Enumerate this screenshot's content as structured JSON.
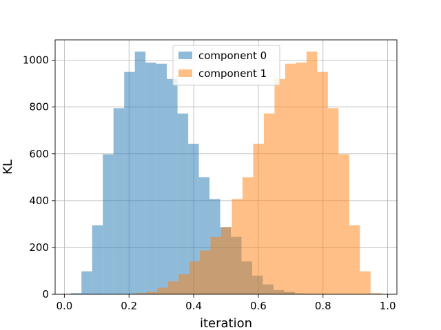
{
  "chart_data": {
    "type": "histogram",
    "xlabel": "iteration",
    "ylabel": "KL",
    "xlim": [
      -0.0285,
      1.0285
    ],
    "ylim": [
      0,
      1087
    ],
    "grid": true,
    "legend_placement": "top-center",
    "xticks": [
      0.0,
      0.2,
      0.4,
      0.6,
      0.8,
      1.0
    ],
    "xtick_labels": [
      "0.0",
      "0.2",
      "0.4",
      "0.6",
      "0.8",
      "1.0"
    ],
    "yticks": [
      0,
      200,
      400,
      600,
      800,
      1000
    ],
    "ytick_labels": [
      "0",
      "200",
      "400",
      "600",
      "800",
      "1000"
    ],
    "series": [
      {
        "name": "component 0",
        "color": "#1f77b4",
        "alpha": 0.5,
        "bin_edges": [
          0.02,
          0.053,
          0.086,
          0.119,
          0.152,
          0.185,
          0.218,
          0.251,
          0.284,
          0.317,
          0.35,
          0.383,
          0.416,
          0.449,
          0.482,
          0.515,
          0.548,
          0.581,
          0.614,
          0.647,
          0.68,
          0.713,
          0.746,
          0.779,
          0.812
        ],
        "counts": [
          5,
          98,
          295,
          598,
          795,
          950,
          1037,
          990,
          985,
          920,
          772,
          643,
          500,
          407,
          287,
          245,
          140,
          80,
          42,
          18,
          10,
          3,
          2,
          1
        ]
      },
      {
        "name": "component 1",
        "color": "#ff7f0e",
        "alpha": 0.5,
        "bin_edges": [
          0.188,
          0.221,
          0.254,
          0.287,
          0.32,
          0.353,
          0.386,
          0.419,
          0.452,
          0.485,
          0.518,
          0.551,
          0.584,
          0.617,
          0.65,
          0.683,
          0.716,
          0.749,
          0.782,
          0.815,
          0.848,
          0.881,
          0.914,
          0.947,
          0.98
        ],
        "counts": [
          1,
          5,
          10,
          28,
          55,
          85,
          140,
          187,
          245,
          287,
          407,
          500,
          643,
          772,
          920,
          985,
          990,
          1037,
          950,
          795,
          598,
          295,
          98,
          5
        ]
      }
    ]
  }
}
